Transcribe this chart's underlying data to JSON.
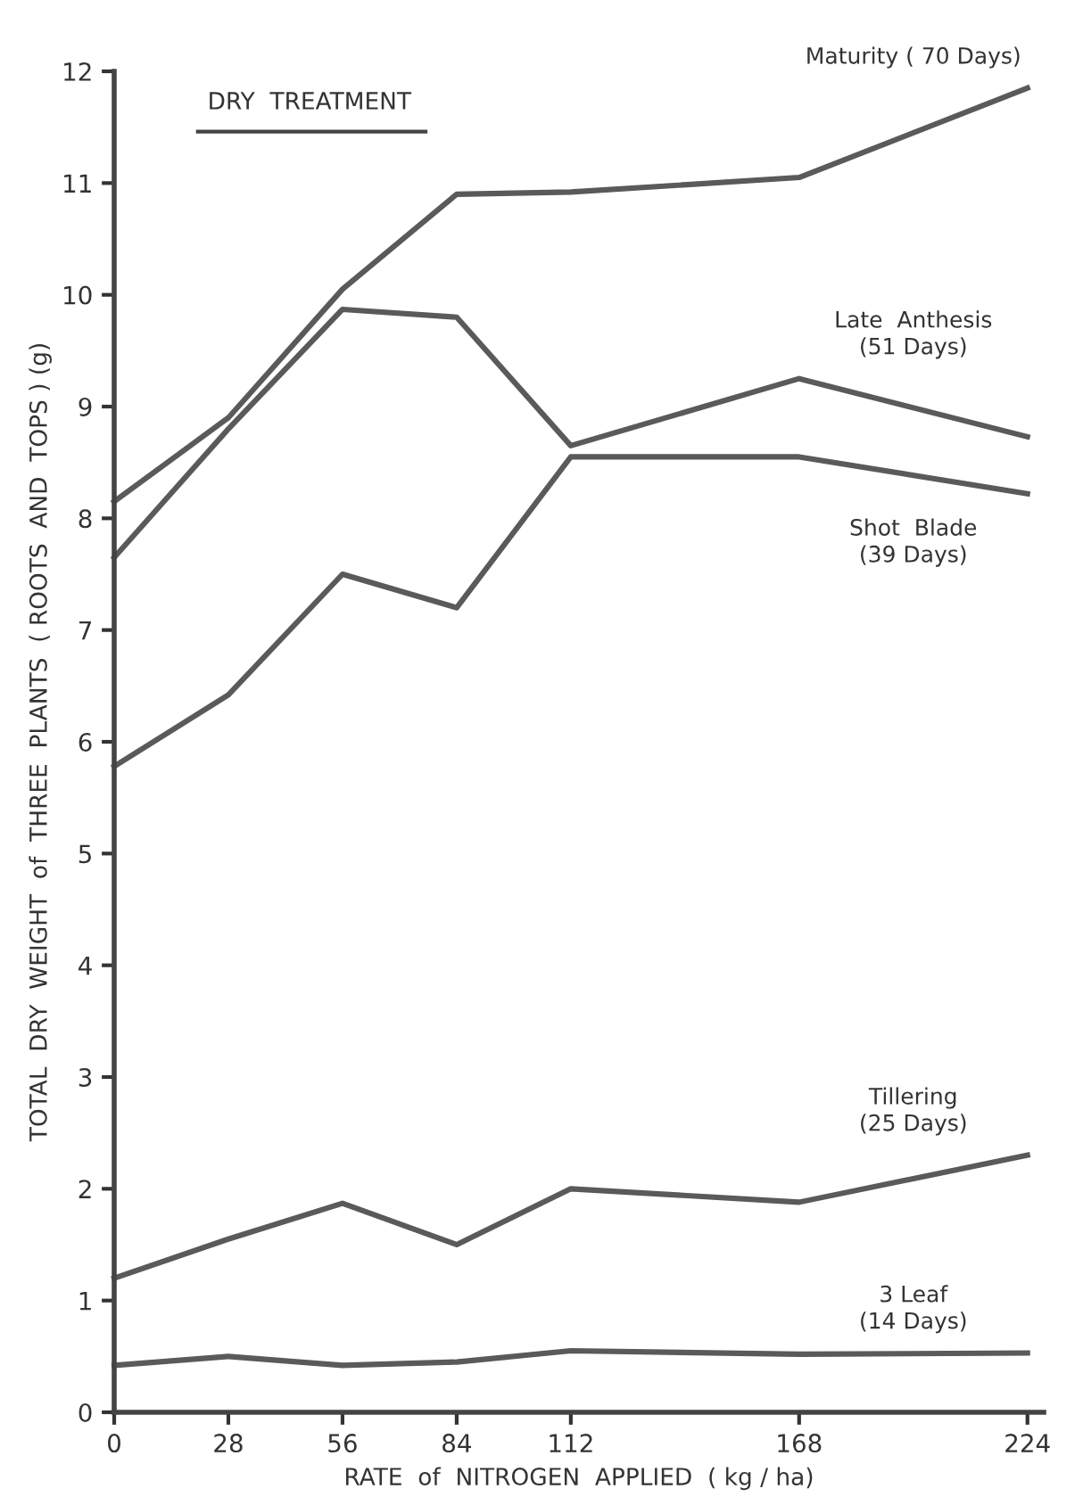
{
  "chart_data": {
    "type": "line",
    "x": [
      0,
      28,
      56,
      84,
      112,
      168,
      224
    ],
    "xlim": [
      0,
      228
    ],
    "xticks": [
      0,
      28,
      56,
      84,
      112,
      168,
      224
    ],
    "ylim": [
      0,
      12
    ],
    "yticks": [
      0,
      1,
      2,
      3,
      4,
      5,
      6,
      7,
      8,
      9,
      10,
      11,
      12
    ],
    "xlabel": "RATE  of  NITROGEN  APPLIED  ( kg / ha)",
    "ylabel": "TOTAL  DRY  WEIGHT  of  THREE  PLANTS  ( ROOTS  AND  TOPS ) (g)",
    "annotations": [
      "DRY  TREATMENT"
    ],
    "grid": false,
    "legend": false,
    "marker": "none",
    "line_style": "solid",
    "series": [
      {
        "name": "Maturity ( 70 Days)",
        "color": "#5a5a5a",
        "values": [
          8.15,
          8.9,
          10.05,
          10.9,
          10.92,
          11.05,
          11.85
        ]
      },
      {
        "name": "Late  Anthesis\n(51 Days)",
        "color": "#5a5a5a",
        "values": [
          7.65,
          8.8,
          9.87,
          9.8,
          8.65,
          9.25,
          8.73
        ]
      },
      {
        "name": "Shot  Blade\n(39 Days)",
        "color": "#5a5a5a",
        "values": [
          5.78,
          6.42,
          7.5,
          7.2,
          8.55,
          8.55,
          8.22
        ]
      },
      {
        "name": "Tillering\n(25 Days)",
        "color": "#5a5a5a",
        "values": [
          1.2,
          1.55,
          1.87,
          1.5,
          2.0,
          1.88,
          2.3
        ]
      },
      {
        "name": "3 Leaf\n(14 Days)",
        "color": "#5a5a5a",
        "values": [
          0.42,
          0.5,
          0.42,
          0.45,
          0.55,
          0.52,
          0.53
        ]
      }
    ]
  }
}
